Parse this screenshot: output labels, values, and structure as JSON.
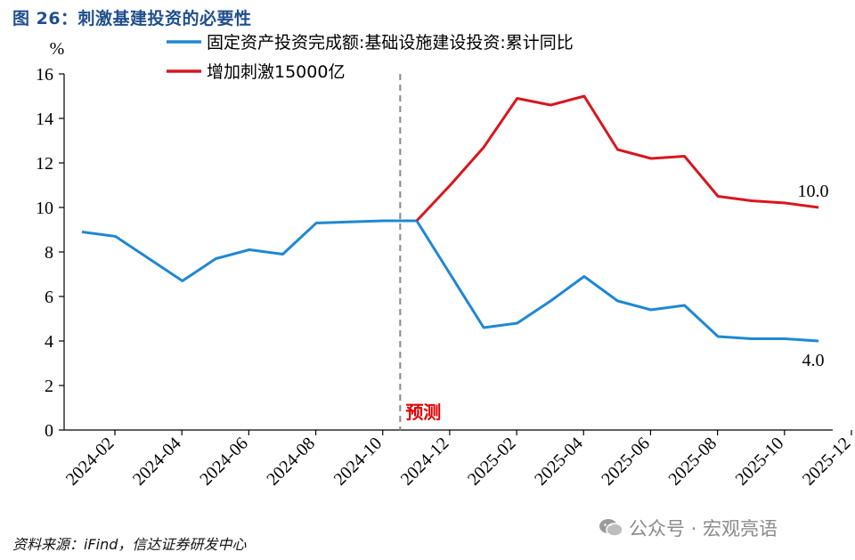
{
  "figure": {
    "title": "图 26：刺激基建投资的必要性",
    "source": "资料来源：iFind，信达证券研发中心",
    "watermark": "公众号 · 宏观亮语"
  },
  "chart_data": {
    "type": "line",
    "ylabel": "%",
    "ylim": [
      0,
      16
    ],
    "yticks": [
      0,
      2,
      4,
      6,
      8,
      10,
      12,
      14,
      16
    ],
    "grid": false,
    "legend_position": "top",
    "x": [
      "2024-02",
      "2024-03",
      "2024-04",
      "2024-05",
      "2024-06",
      "2024-07",
      "2024-08",
      "2024-09",
      "2024-10",
      "2024-11",
      "2024-12",
      "2025-01",
      "2025-02",
      "2025-03",
      "2025-04",
      "2025-05",
      "2025-06",
      "2025-07",
      "2025-08",
      "2025-09",
      "2025-10",
      "2025-11",
      "2025-12"
    ],
    "xtick_labels": [
      "2024-02",
      "2024-04",
      "2024-06",
      "2024-08",
      "2024-10",
      "2024-12",
      "2025-02",
      "2025-04",
      "2025-06",
      "2025-08",
      "2025-10",
      "2025-12"
    ],
    "forecast_marker": {
      "x": "2024-11",
      "label": "预测",
      "color": "#e00000"
    },
    "series": [
      {
        "name": "固定资产投资完成额:基础设施建设投资:累计同比",
        "color": "#1f88d2",
        "values": [
          8.9,
          8.7,
          null,
          6.7,
          7.7,
          8.1,
          7.9,
          9.3,
          null,
          9.4,
          9.4,
          null,
          4.6,
          4.8,
          5.8,
          6.9,
          5.8,
          5.4,
          5.6,
          4.2,
          4.1,
          4.1,
          4.0
        ],
        "end_label": "4.0"
      },
      {
        "name": "增加刺激15000亿",
        "color": "#d6171e",
        "values": [
          null,
          null,
          null,
          null,
          null,
          null,
          null,
          null,
          null,
          null,
          9.4,
          11.0,
          12.7,
          14.9,
          14.6,
          15.0,
          12.6,
          12.2,
          12.3,
          10.5,
          10.3,
          10.2,
          10.0
        ],
        "end_label": "10.0"
      }
    ]
  }
}
